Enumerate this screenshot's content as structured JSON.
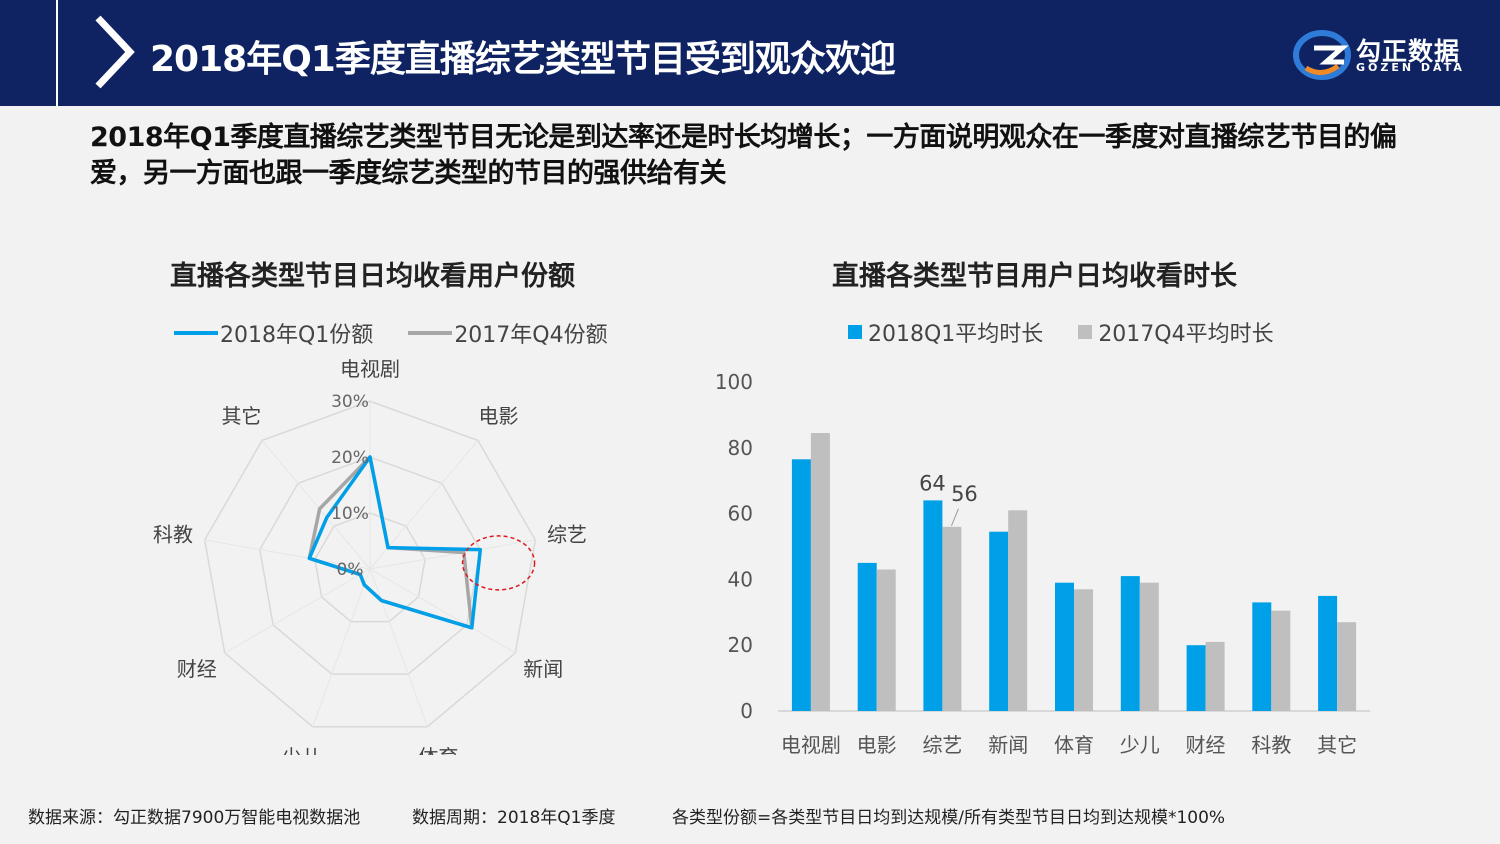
{
  "header": {
    "title": "2018年Q1季度直播综艺类型节目受到观众欢迎",
    "logo_cn": "勾正数据",
    "logo_en": "GOZEN DATA"
  },
  "summary": "2018年Q1季度直播综艺类型节目无论是到达率还是时长均增长；一方面说明观众在一季度对直播综艺节目的偏爱，另一方面也跟一季度综艺类型的节目的强供给有关",
  "colors": {
    "blue": "#00a0e9",
    "gray": "#a6a6a6",
    "bar_gray": "#bfbfbf",
    "header": "#0f2362",
    "highlight": "#e0191e"
  },
  "chart_data": [
    {
      "type": "radar",
      "title": "直播各类型节目日均收看用户份额",
      "categories": [
        "电视剧",
        "电影",
        "综艺",
        "新闻",
        "体育",
        "少儿",
        "财经",
        "科教",
        "其它"
      ],
      "rticks": [
        "0%",
        "10%",
        "20%",
        "30%"
      ],
      "rmax": 30,
      "series": [
        {
          "name": "2018年Q1份额",
          "values": [
            20,
            5,
            20,
            21,
            6,
            3,
            2,
            11,
            12
          ]
        },
        {
          "name": "2017年Q4份额",
          "values": [
            20,
            5,
            17,
            21,
            6,
            3,
            2,
            11,
            14
          ]
        }
      ],
      "legend_position": "top"
    },
    {
      "type": "bar",
      "title": "直播各类型节目用户日均收看时长",
      "categories": [
        "电视剧",
        "电影",
        "综艺",
        "新闻",
        "体育",
        "少儿",
        "财经",
        "科教",
        "其它"
      ],
      "series": [
        {
          "name": "2018Q1平均时长",
          "values": [
            76.5,
            45,
            64,
            54.5,
            39,
            41,
            20,
            33,
            35
          ]
        },
        {
          "name": "2017Q4平均时长",
          "values": [
            84.5,
            43,
            56,
            61,
            37,
            39,
            21,
            30.5,
            27
          ]
        }
      ],
      "data_labels": {
        "64": "64",
        "56": "56"
      },
      "ylim": [
        0,
        100
      ],
      "yticks": [
        "0",
        "20",
        "40",
        "60",
        "80",
        "100"
      ],
      "legend_position": "top"
    }
  ],
  "footer": {
    "source": "数据来源：勾正数据7900万智能电视数据池",
    "period": "数据周期：2018年Q1季度",
    "formula": "各类型份额=各类型节目日均到达规模/所有类型节目日均到达规模*100%"
  }
}
